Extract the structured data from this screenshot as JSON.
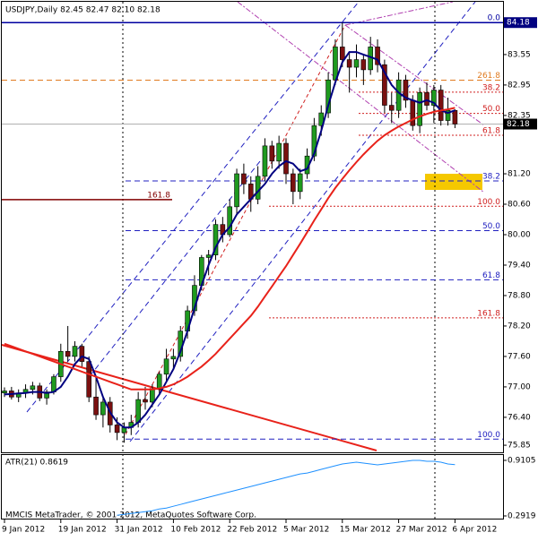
{
  "chart_data": {
    "type": "candlestick",
    "title": "USDJPY,Daily  82.45 82.47 82.10 82.18",
    "categories": [
      "9 Jan 2012",
      null,
      null,
      null,
      null,
      null,
      null,
      null,
      "19 Jan 2012",
      null,
      null,
      null,
      null,
      null,
      null,
      null,
      "31 Jan 2012",
      null,
      null,
      null,
      null,
      null,
      null,
      null,
      "10 Feb 2012",
      null,
      null,
      null,
      null,
      null,
      null,
      null,
      "22 Feb 2012",
      null,
      null,
      null,
      null,
      null,
      null,
      null,
      "5 Mar 2012",
      null,
      null,
      null,
      null,
      null,
      null,
      null,
      "15 Mar 2012",
      null,
      null,
      null,
      null,
      null,
      null,
      null,
      "27 Mar 2012",
      null,
      null,
      null,
      null,
      null,
      null,
      null,
      "6 Apr 2012"
    ],
    "open": [
      76.88,
      76.92,
      76.8,
      76.88,
      76.95,
      77.02,
      76.78,
      76.9,
      77.2,
      77.7,
      77.6,
      77.8,
      77.5,
      76.8,
      76.45,
      76.7,
      76.25,
      76.1,
      76.2,
      76.3,
      76.75,
      76.7,
      76.95,
      77.25,
      77.55,
      77.6,
      78.1,
      78.5,
      79.0,
      79.55,
      79.6,
      80.2,
      80.0,
      80.55,
      81.2,
      81.0,
      80.7,
      81.15,
      81.75,
      81.45,
      81.8,
      81.2,
      80.85,
      81.2,
      81.55,
      82.15,
      82.4,
      83.05,
      83.7,
      83.45,
      83.3,
      83.45,
      83.25,
      83.7,
      83.35,
      82.55,
      82.45,
      83.05,
      82.65,
      82.15,
      82.8,
      82.55,
      82.85,
      82.25,
      82.45
    ],
    "high": [
      76.99,
      77.0,
      76.95,
      77.05,
      77.1,
      77.08,
      76.95,
      77.25,
      77.85,
      78.2,
      77.9,
      77.85,
      77.6,
      77.2,
      76.8,
      76.8,
      76.4,
      76.3,
      76.45,
      76.9,
      77.0,
      77.05,
      77.3,
      77.75,
      77.75,
      78.2,
      78.6,
      79.2,
      79.6,
      79.7,
      80.3,
      80.35,
      80.7,
      81.3,
      81.4,
      81.15,
      81.35,
      81.9,
      81.85,
      81.95,
      81.9,
      81.3,
      81.3,
      81.7,
      82.3,
      82.55,
      83.2,
      83.85,
      84.18,
      83.6,
      83.75,
      83.55,
      83.9,
      83.85,
      83.45,
      82.8,
      83.2,
      83.15,
      82.75,
      82.9,
      83.0,
      82.95,
      82.95,
      82.7,
      82.47
    ],
    "low": [
      76.8,
      76.75,
      76.7,
      76.78,
      76.85,
      76.72,
      76.65,
      76.85,
      77.1,
      77.5,
      77.5,
      77.4,
      76.7,
      76.35,
      76.2,
      76.1,
      75.95,
      75.9,
      76.05,
      76.2,
      76.55,
      76.6,
      76.85,
      77.1,
      77.35,
      77.5,
      77.95,
      78.4,
      78.9,
      79.2,
      79.5,
      79.85,
      79.95,
      80.4,
      80.8,
      80.45,
      80.6,
      81.05,
      81.3,
      81.3,
      81.0,
      80.6,
      80.7,
      81.1,
      81.45,
      81.95,
      82.3,
      82.95,
      83.3,
      82.8,
      83.1,
      82.95,
      83.15,
      83.2,
      82.4,
      82.2,
      82.3,
      82.5,
      82.05,
      82.0,
      82.45,
      82.2,
      82.15,
      82.15,
      82.1
    ],
    "close": [
      76.92,
      76.8,
      76.88,
      76.95,
      77.02,
      76.78,
      76.9,
      77.2,
      77.7,
      77.6,
      77.8,
      77.5,
      76.8,
      76.45,
      76.7,
      76.25,
      76.1,
      76.2,
      76.3,
      76.75,
      76.7,
      76.95,
      77.25,
      77.55,
      77.6,
      78.1,
      78.5,
      79.0,
      79.55,
      79.6,
      80.2,
      80.0,
      80.55,
      81.2,
      81.0,
      80.7,
      81.15,
      81.75,
      81.45,
      81.8,
      81.2,
      80.85,
      81.2,
      81.55,
      82.15,
      82.4,
      83.05,
      83.7,
      83.45,
      83.3,
      83.45,
      83.25,
      83.7,
      83.35,
      82.55,
      82.45,
      83.05,
      82.65,
      82.15,
      82.8,
      82.55,
      82.85,
      82.25,
      82.45,
      82.18
    ],
    "up_color": "#1f9a1f",
    "down_color": "#7a1010",
    "ylim": [
      75.71,
      84.59
    ],
    "yticks": [
      83.55,
      82.95,
      82.35,
      {
        "value": 81.2,
        "label": "81.20"
      },
      {
        "value": 80.6,
        "label": "80.60"
      },
      {
        "value": 80,
        "label": "80.00"
      },
      {
        "value": 79.4,
        "label": "79.40"
      },
      {
        "value": 78.8,
        "label": "78.80"
      },
      {
        "value": 78.2,
        "label": "78.20"
      },
      {
        "value": 77.6,
        "label": "77.60"
      },
      {
        "value": 77,
        "label": "77.00"
      },
      {
        "value": 76.4,
        "label": "76.40"
      },
      75.85
    ],
    "high_level": 84.18,
    "current_price": 82.18,
    "lines": [
      {
        "color": "#000080",
        "values": [
          76.85,
          76.86,
          76.87,
          76.88,
          76.9,
          76.9,
          76.88,
          76.9,
          77.0,
          77.2,
          77.45,
          77.6,
          77.55,
          77.2,
          76.8,
          76.5,
          76.3,
          76.2,
          76.2,
          76.3,
          76.45,
          76.65,
          76.85,
          77.1,
          77.35,
          77.7,
          78.1,
          78.55,
          79.0,
          79.4,
          79.75,
          80.0,
          80.15,
          80.4,
          80.55,
          80.7,
          80.85,
          81.0,
          81.2,
          81.35,
          81.45,
          81.4,
          81.25,
          81.3,
          81.6,
          82.05,
          82.55,
          83.0,
          83.4,
          83.6,
          83.6,
          83.55,
          83.5,
          83.45,
          83.2,
          82.95,
          82.8,
          82.7,
          82.65,
          82.6,
          82.65,
          82.6,
          82.45,
          82.4,
          82.45
        ]
      },
      {
        "color": "#e8221a",
        "values": [
          77.85,
          77.8,
          77.75,
          77.7,
          77.65,
          77.6,
          77.55,
          77.5,
          77.45,
          77.4,
          77.35,
          77.3,
          77.25,
          77.2,
          77.15,
          77.1,
          77.05,
          77.0,
          76.95,
          76.95,
          76.95,
          76.95,
          76.97,
          77.0,
          77.05,
          77.12,
          77.2,
          77.3,
          77.4,
          77.52,
          77.65,
          77.8,
          77.95,
          78.1,
          78.25,
          78.4,
          78.58,
          78.78,
          78.98,
          79.18,
          79.38,
          79.6,
          79.82,
          80.05,
          80.28,
          80.5,
          80.72,
          80.92,
          81.1,
          81.27,
          81.43,
          81.58,
          81.72,
          81.85,
          81.96,
          82.05,
          82.13,
          82.2,
          82.27,
          82.33,
          82.38,
          82.42,
          82.45,
          82.47,
          82.5
        ]
      }
    ],
    "levels": [
      {
        "label": "0.0",
        "value": 84.18,
        "color": "#0000a0",
        "style": "solid"
      },
      {
        "label": "261.8",
        "value": 83.045,
        "color": "#e07b20",
        "style": "dashed"
      },
      {
        "label": "38.2",
        "value": 82.81,
        "color": "#d02020",
        "style": "dotted"
      },
      {
        "label": "50.0",
        "value": 82.39,
        "color": "#d02020",
        "style": "dotted"
      },
      {
        "label": "61.8",
        "value": 81.96,
        "color": "#d02020",
        "style": "dotted"
      },
      {
        "label": "38.2",
        "value": 81.06,
        "color": "#2020c0",
        "style": "dashed"
      },
      {
        "label": "100.0",
        "value": 80.56,
        "color": "#d02020",
        "style": "dotted"
      },
      {
        "label": "161.8",
        "value": 80.69,
        "color": "#800000",
        "style": "solid"
      },
      {
        "label": "50.0",
        "value": 80.08,
        "color": "#2020c0",
        "style": "dashed"
      },
      {
        "label": "61.8",
        "value": 79.11,
        "color": "#2020c0",
        "style": "dashed"
      },
      {
        "label": "161.8",
        "value": 78.36,
        "color": "#d02020",
        "style": "dotted"
      },
      {
        "label": "100.0",
        "value": 75.97,
        "color": "#2020c0",
        "style": "dashed"
      }
    ],
    "indicator": {
      "title": "ATR(21) 0.8619",
      "color": "#1e90ff",
      "values": [
        null,
        null,
        null,
        null,
        null,
        null,
        null,
        null,
        null,
        null,
        null,
        null,
        null,
        null,
        null,
        null,
        0.3,
        0.31,
        0.32,
        0.33,
        0.34,
        0.35,
        0.37,
        0.38,
        0.4,
        0.42,
        0.44,
        0.46,
        0.48,
        0.5,
        0.52,
        0.54,
        0.56,
        0.58,
        0.6,
        0.62,
        0.64,
        0.66,
        0.68,
        0.7,
        0.72,
        0.74,
        0.76,
        0.77,
        0.79,
        0.81,
        0.83,
        0.85,
        0.87,
        0.88,
        0.89,
        0.88,
        0.87,
        0.86,
        0.87,
        0.88,
        0.89,
        0.9,
        0.91,
        0.91,
        0.9,
        0.9,
        0.89,
        0.87,
        0.8619
      ],
      "ylim": [
        0.262,
        0.97
      ],
      "yticks": [
        0.9105,
        0.2919
      ]
    },
    "footer": "MMCIS MetaTrader, © 2001-2012, MetaQuotes Software Corp."
  }
}
